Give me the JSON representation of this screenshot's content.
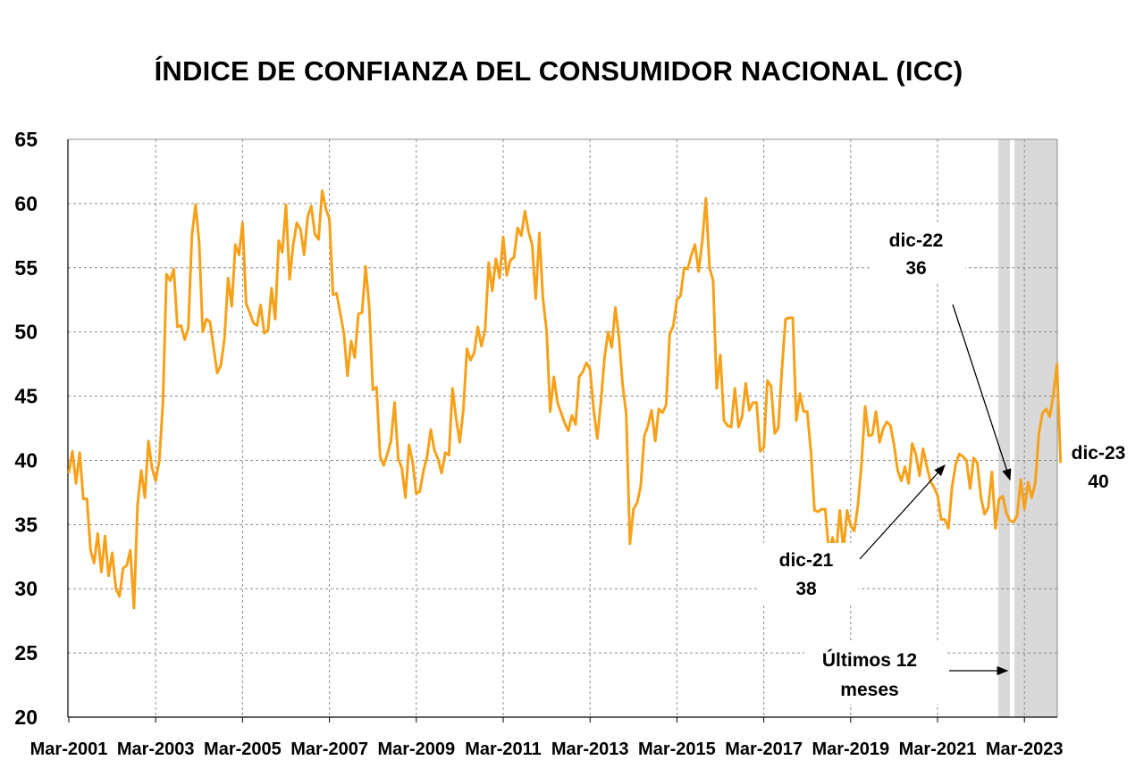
{
  "chart_data": {
    "type": "line",
    "title": "ÍNDICE DE CONFIANZA DEL CONSUMIDOR NACIONAL (ICC)",
    "xlabel": "",
    "ylabel": "",
    "ylim": [
      20,
      65
    ],
    "yticks": [
      20,
      25,
      30,
      35,
      40,
      45,
      50,
      55,
      60,
      65
    ],
    "x_start": "Mar-2001",
    "x_end": "Dic-2023",
    "xtick_labels": [
      "Mar-2001",
      "Mar-2003",
      "Mar-2005",
      "Mar-2007",
      "Mar-2009",
      "Mar-2011",
      "Mar-2013",
      "Mar-2015",
      "Mar-2017",
      "Mar-2019",
      "Mar-2021",
      "Mar-2023"
    ],
    "grid": true,
    "line_color": "#F7A11A",
    "shade_color": "#D9D9D9",
    "series": [
      {
        "name": "ICC",
        "values": [
          39,
          40.7,
          38.2,
          40.6,
          37,
          37,
          33,
          32,
          34.3,
          31.3,
          34.1,
          31,
          32.8,
          30,
          29.4,
          31.6,
          31.8,
          33,
          28.5,
          36.5,
          39.2,
          37.1,
          41.5,
          39.4,
          38.4,
          40,
          44.5,
          54.5,
          54,
          54.9,
          50.4,
          50.5,
          49.4,
          50.3,
          57.5,
          59.9,
          57,
          50,
          51,
          50.8,
          48.8,
          46.8,
          47.4,
          49.5,
          54.2,
          52,
          56.8,
          56,
          58.5,
          52.2,
          51.5,
          50.7,
          50.5,
          52.1,
          49.9,
          50.1,
          53.4,
          51,
          57.1,
          56.2,
          59.9,
          54.1,
          56.8,
          58.5,
          58,
          56,
          59,
          59.8,
          57.6,
          57.2,
          61,
          59.6,
          58.8,
          52.9,
          53,
          51.4,
          49.9,
          46.6,
          49.3,
          48,
          51.4,
          51.5,
          55.1,
          52,
          45.5,
          45.7,
          40.3,
          39.6,
          40.5,
          41.5,
          44.5,
          40.1,
          39.4,
          37.1,
          41.2,
          39.8,
          37.4,
          37.6,
          39.2,
          40.3,
          42.4,
          40.8,
          40.1,
          39,
          40.6,
          40.4,
          45.6,
          43.3,
          41.4,
          44,
          48.7,
          47.8,
          48.4,
          50.4,
          48.9,
          50.2,
          55.4,
          53.2,
          55.7,
          54.2,
          57.4,
          54.4,
          55.6,
          55.8,
          58.1,
          57.5,
          59.4,
          57.8,
          56.8,
          52.6,
          57.7,
          52.6,
          50.1,
          43.8,
          46.5,
          44.5,
          43.7,
          42.9,
          42.3,
          43.5,
          42.8,
          46.5,
          46.9,
          47.6,
          47.1,
          43.9,
          41.7,
          44.6,
          48,
          50,
          48.8,
          51.9,
          49.6,
          45.9,
          43.6,
          33.5,
          36.2,
          36.7,
          38,
          41.9,
          42.7,
          43.9,
          41.5,
          44,
          43.7,
          44.3,
          49.8,
          50.5,
          52.5,
          52.8,
          55,
          54.9,
          56,
          56.8,
          54.7,
          57.1,
          60.4,
          55,
          54,
          45.6,
          48.2,
          43.1,
          42.7,
          42.6,
          45.6,
          42.6,
          43.4,
          46,
          43.9,
          44.5,
          44.5,
          40.7,
          41,
          46.2,
          45.8,
          42.1,
          42.5,
          47,
          51,
          51.1,
          51.1,
          43.1,
          45.2,
          43.8,
          43.8,
          40.7,
          36.1,
          36,
          36.2,
          36.2,
          32.8,
          34,
          32.8,
          36.1,
          33,
          36.1,
          34.9,
          34.5,
          36.5,
          39.7,
          44.2,
          41.9,
          42,
          43.8,
          41.4,
          42.5,
          43,
          42.7,
          41.2,
          39.2,
          38.4,
          39.5,
          38.2,
          41.3,
          40.5,
          38.8,
          40.9,
          39.6,
          38.4,
          37.9,
          37.3,
          35.4,
          35.4,
          34.7,
          37.9,
          39.7,
          40.5,
          40.3,
          40,
          37.8,
          40.2,
          39.8,
          37.1,
          35.8,
          36.3,
          39.1,
          34.7,
          37,
          37.2,
          35.9,
          35.3,
          35.2,
          35.7,
          38.5,
          36.2,
          38.3,
          37.1,
          38.2,
          42.1,
          43.7,
          44,
          43.4,
          45.1,
          47.5,
          39.8
        ]
      }
    ],
    "shaded_region_label": "Últimos 12 meses",
    "annotations": [
      {
        "label": "dic-21",
        "value": "38"
      },
      {
        "label": "dic-22",
        "value": "36"
      },
      {
        "label": "dic-23",
        "value": "40"
      },
      {
        "label": "Últimos 12",
        "value": "meses"
      }
    ]
  }
}
